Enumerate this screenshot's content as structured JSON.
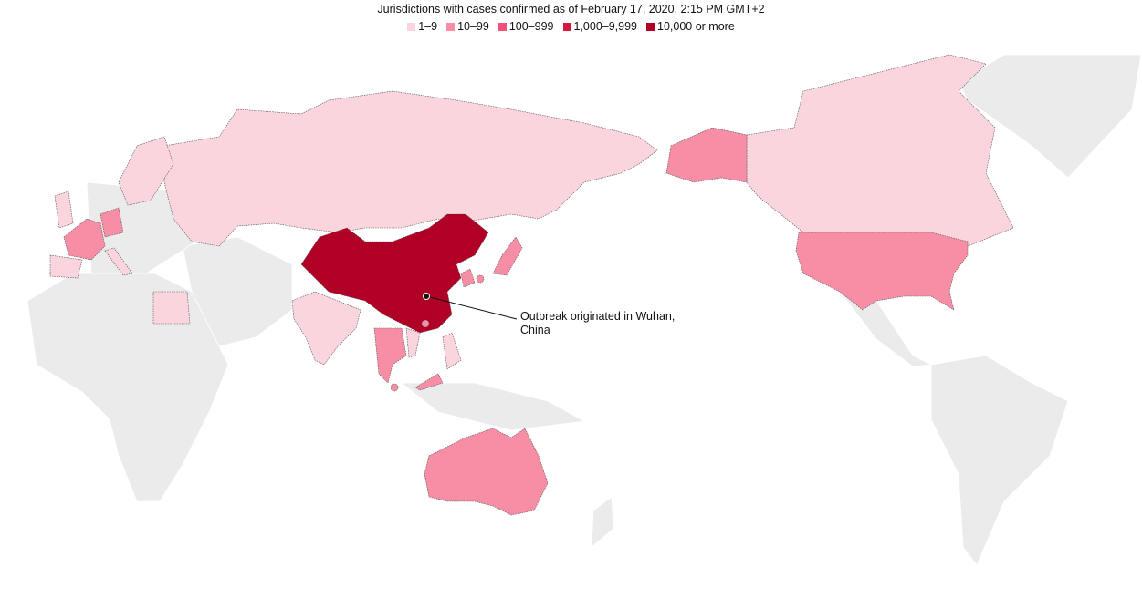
{
  "title": "Jurisdictions with cases confirmed as of February 17, 2020, 2:15 PM GMT+2",
  "legend": [
    {
      "label": "1–9",
      "color": "#fbd5dd"
    },
    {
      "label": "10–99",
      "color": "#f78ea5"
    },
    {
      "label": "100–999",
      "color": "#ef5377"
    },
    {
      "label": "1,000–9,999",
      "color": "#d4173f"
    },
    {
      "label": "10,000 or more",
      "color": "#b10026"
    }
  ],
  "annotation": "Outbreak originated in Wuhan, China"
}
